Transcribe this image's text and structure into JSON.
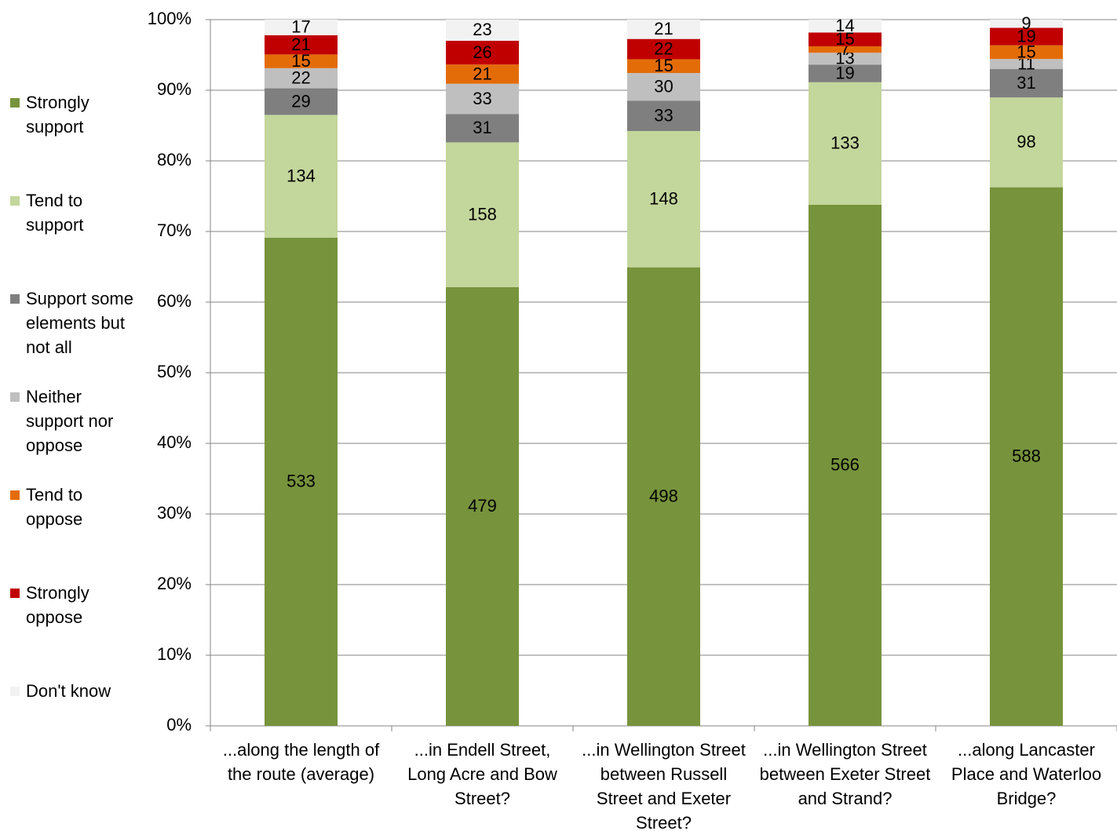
{
  "chart_data": {
    "type": "bar",
    "stacked": "percent",
    "categories": [
      "...along the length of the route (average)",
      "...in Endell Street, Long Acre and Bow Street?",
      "...in Wellington Street between Russell Street and Exeter Street?",
      "...in Wellington Street between Exeter Street and Strand?",
      "...along Lancaster Place and Waterloo Bridge?"
    ],
    "series": [
      {
        "name": "Strongly support",
        "color": "#77933c",
        "values": [
          533,
          479,
          498,
          566,
          588
        ]
      },
      {
        "name": "Tend to support",
        "color": "#c3d69b",
        "values": [
          134,
          158,
          148,
          133,
          98
        ]
      },
      {
        "name": "Support some elements but not all",
        "color": "#7f7f7f",
        "values": [
          29,
          31,
          33,
          19,
          31
        ]
      },
      {
        "name": "Neither support nor oppose",
        "color": "#bfbfbf",
        "values": [
          22,
          33,
          30,
          13,
          11
        ]
      },
      {
        "name": "Tend to oppose",
        "color": "#e36c09",
        "values": [
          15,
          21,
          15,
          7,
          15
        ]
      },
      {
        "name": "Strongly oppose",
        "color": "#c00000",
        "values": [
          21,
          26,
          22,
          15,
          19
        ]
      },
      {
        "name": "Don't know",
        "color": "#f2f2f2",
        "values": [
          17,
          23,
          21,
          14,
          9
        ]
      }
    ],
    "ylim": [
      0,
      100
    ],
    "yticks": [
      {
        "value": 0,
        "label": "0%"
      },
      {
        "value": 10,
        "label": "10%"
      },
      {
        "value": 20,
        "label": "20%"
      },
      {
        "value": 30,
        "label": "30%"
      },
      {
        "value": 40,
        "label": "40%"
      },
      {
        "value": 50,
        "label": "50%"
      },
      {
        "value": 60,
        "label": "60%"
      },
      {
        "value": 70,
        "label": "70%"
      },
      {
        "value": 80,
        "label": "80%"
      },
      {
        "value": 90,
        "label": "90%"
      },
      {
        "value": 100,
        "label": "100%"
      }
    ],
    "grid": true,
    "legend": "left"
  }
}
